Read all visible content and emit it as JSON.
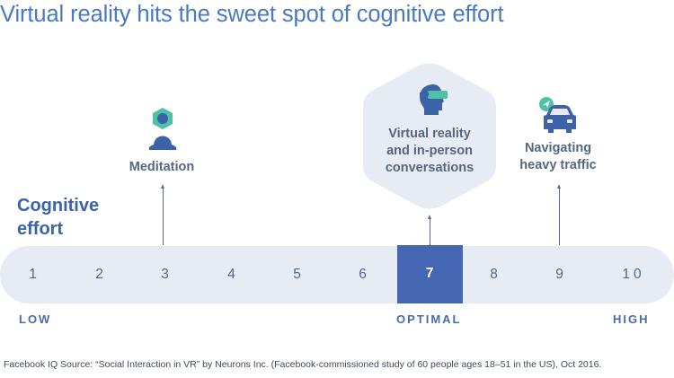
{
  "title": "Virtual reality hits the sweet spot of cognitive effort",
  "axis_title": "Cognitive effort",
  "scale": [
    "1",
    "2",
    "3",
    "4",
    "5",
    "6",
    "7",
    "8",
    "9",
    "10"
  ],
  "scale_optimal_index": 6,
  "range_labels": {
    "low": "LOW",
    "optimal": "OPTIMAL",
    "high": "HIGH"
  },
  "activities": [
    {
      "label_lines": [
        "Meditation"
      ],
      "icon": "meditation-person-icon",
      "score": 3
    },
    {
      "label_lines": [
        "Virtual reality",
        "and in-person",
        "conversations"
      ],
      "icon": "vr-headset-person-icon",
      "score": 7
    },
    {
      "label_lines": [
        "Navigating",
        "heavy traffic"
      ],
      "icon": "car-navigation-icon",
      "score": 9
    }
  ],
  "footnote": "Facebook IQ Source: “Social Interaction in VR” by Neurons Inc. (Facebook-commissioned study of 60 people ages 18–51 in the US), Oct 2016.",
  "colors": {
    "accent_blue": "#4566b3",
    "title_blue": "#4a78c2",
    "icon_teal": "#4fc1a5",
    "bar_background": "#e7ecf4",
    "hexagon_background": "#e7ecf4",
    "text_gray": "#55677e"
  }
}
